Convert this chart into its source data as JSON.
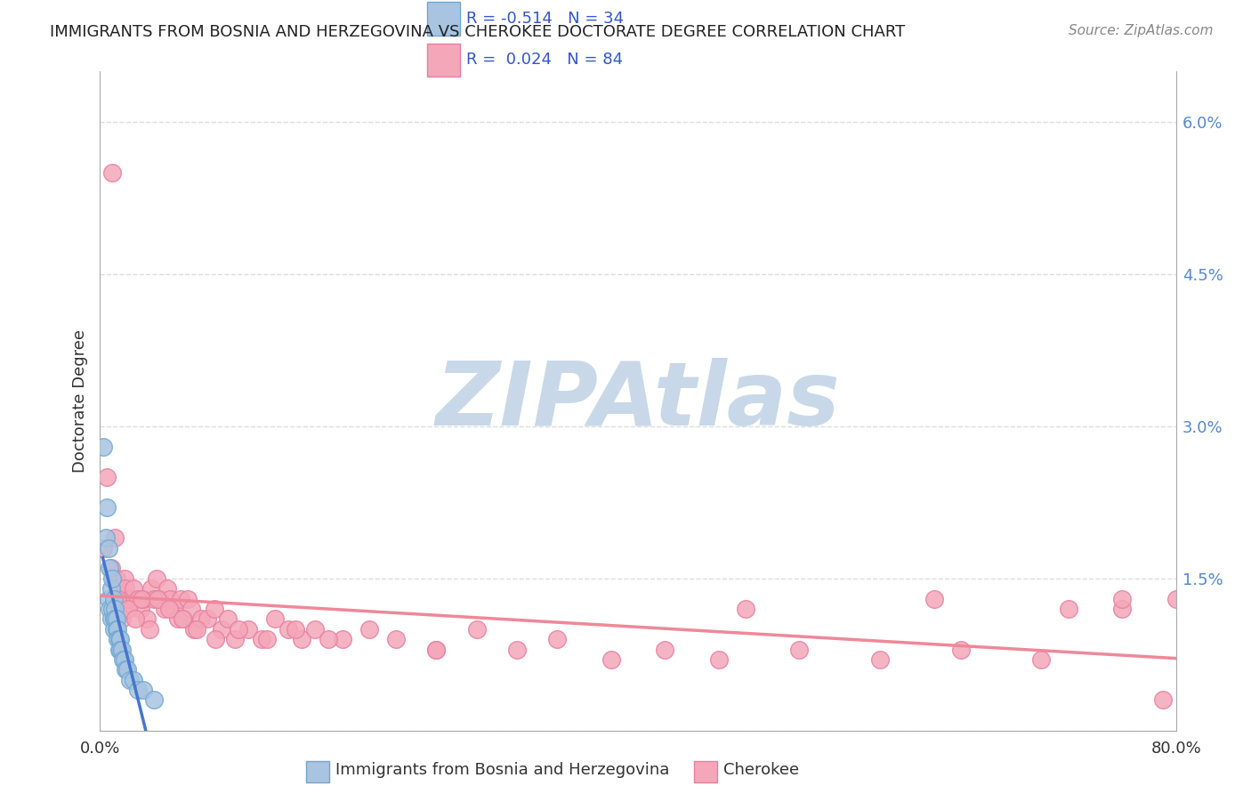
{
  "title": "IMMIGRANTS FROM BOSNIA AND HERZEGOVINA VS CHEROKEE DOCTORATE DEGREE CORRELATION CHART",
  "source": "Source: ZipAtlas.com",
  "xlabel_blue": "Immigrants from Bosnia and Herzegovina",
  "xlabel_pink": "Cherokee",
  "ylabel": "Doctorate Degree",
  "xlim": [
    0,
    0.8
  ],
  "ylim": [
    0,
    0.065
  ],
  "yticks": [
    0,
    0.015,
    0.03,
    0.045,
    0.06
  ],
  "ytick_labels": [
    "",
    "1.5%",
    "3.0%",
    "4.5%",
    "6.0%"
  ],
  "xticks": [
    0,
    0.8
  ],
  "xtick_labels": [
    "0.0%",
    "80.0%"
  ],
  "blue_R": -0.514,
  "blue_N": 34,
  "pink_R": 0.024,
  "pink_N": 84,
  "blue_color": "#a8c4e0",
  "blue_edge": "#6fa8d4",
  "pink_color": "#f4a7b9",
  "pink_edge": "#e87fa0",
  "blue_line_color": "#4477cc",
  "pink_line_color": "#ee8899",
  "legend_R_color": "#3355cc",
  "background": "#ffffff",
  "watermark": "ZIPAtlas",
  "watermark_color": "#c8d8e8",
  "grid_color": "#dddddd",
  "blue_x": [
    0.002,
    0.004,
    0.005,
    0.006,
    0.006,
    0.007,
    0.007,
    0.008,
    0.008,
    0.009,
    0.009,
    0.01,
    0.01,
    0.01,
    0.011,
    0.011,
    0.012,
    0.012,
    0.013,
    0.013,
    0.014,
    0.014,
    0.015,
    0.015,
    0.016,
    0.017,
    0.018,
    0.019,
    0.02,
    0.022,
    0.025,
    0.028,
    0.032,
    0.04
  ],
  "blue_y": [
    0.028,
    0.019,
    0.022,
    0.018,
    0.013,
    0.016,
    0.012,
    0.014,
    0.011,
    0.015,
    0.012,
    0.013,
    0.011,
    0.01,
    0.012,
    0.011,
    0.011,
    0.01,
    0.01,
    0.009,
    0.009,
    0.008,
    0.009,
    0.008,
    0.008,
    0.007,
    0.007,
    0.006,
    0.006,
    0.005,
    0.005,
    0.004,
    0.004,
    0.003
  ],
  "pink_x": [
    0.002,
    0.005,
    0.008,
    0.01,
    0.012,
    0.013,
    0.014,
    0.015,
    0.016,
    0.017,
    0.018,
    0.019,
    0.02,
    0.022,
    0.025,
    0.028,
    0.03,
    0.032,
    0.035,
    0.038,
    0.04,
    0.042,
    0.045,
    0.048,
    0.05,
    0.052,
    0.055,
    0.058,
    0.06,
    0.062,
    0.065,
    0.068,
    0.07,
    0.075,
    0.08,
    0.085,
    0.09,
    0.095,
    0.1,
    0.11,
    0.12,
    0.13,
    0.14,
    0.15,
    0.16,
    0.18,
    0.2,
    0.22,
    0.25,
    0.28,
    0.31,
    0.34,
    0.38,
    0.42,
    0.46,
    0.52,
    0.58,
    0.64,
    0.7,
    0.76,
    0.009,
    0.011,
    0.013,
    0.016,
    0.021,
    0.026,
    0.031,
    0.037,
    0.043,
    0.051,
    0.061,
    0.072,
    0.086,
    0.103,
    0.124,
    0.145,
    0.17,
    0.25,
    0.48,
    0.62,
    0.72,
    0.76,
    0.79,
    0.8
  ],
  "pink_y": [
    0.018,
    0.025,
    0.016,
    0.015,
    0.015,
    0.013,
    0.014,
    0.013,
    0.012,
    0.013,
    0.015,
    0.014,
    0.012,
    0.013,
    0.014,
    0.013,
    0.012,
    0.013,
    0.011,
    0.014,
    0.013,
    0.015,
    0.013,
    0.012,
    0.014,
    0.013,
    0.012,
    0.011,
    0.013,
    0.011,
    0.013,
    0.012,
    0.01,
    0.011,
    0.011,
    0.012,
    0.01,
    0.011,
    0.009,
    0.01,
    0.009,
    0.011,
    0.01,
    0.009,
    0.01,
    0.009,
    0.01,
    0.009,
    0.008,
    0.01,
    0.008,
    0.009,
    0.007,
    0.008,
    0.007,
    0.008,
    0.007,
    0.008,
    0.007,
    0.012,
    0.055,
    0.019,
    0.013,
    0.011,
    0.012,
    0.011,
    0.013,
    0.01,
    0.013,
    0.012,
    0.011,
    0.01,
    0.009,
    0.01,
    0.009,
    0.01,
    0.009,
    0.008,
    0.012,
    0.013,
    0.012,
    0.013,
    0.003,
    0.013
  ]
}
